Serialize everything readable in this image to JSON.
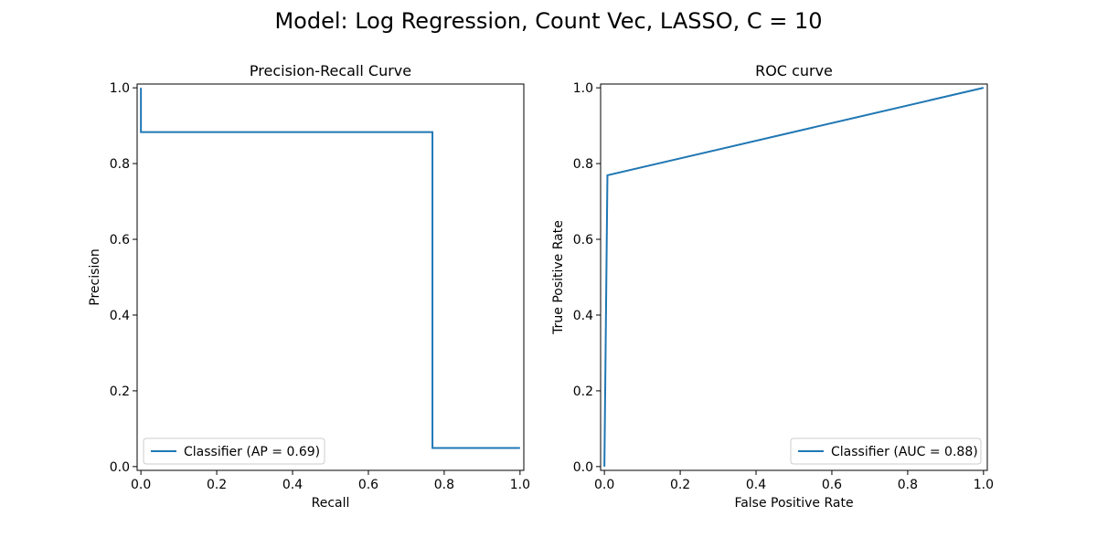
{
  "figure": {
    "suptitle": "Model: Log Regression, Count Vec, LASSO, C = 10"
  },
  "chart_data": [
    {
      "type": "line",
      "drawstyle": "steps-post",
      "title": "Precision-Recall Curve",
      "xlabel": "Recall",
      "ylabel": "Precision",
      "xlim": [
        -0.01,
        1.01
      ],
      "ylim": [
        -0.01,
        1.01
      ],
      "xticks": [
        0.0,
        0.2,
        0.4,
        0.6,
        0.8,
        1.0
      ],
      "yticks": [
        0.0,
        0.2,
        0.4,
        0.6,
        0.8,
        1.0
      ],
      "xtick_labels": [
        "0.0",
        "0.2",
        "0.4",
        "0.6",
        "0.8",
        "1.0"
      ],
      "ytick_labels": [
        "0.0",
        "0.2",
        "0.4",
        "0.6",
        "0.8",
        "1.0"
      ],
      "grid": false,
      "legend_position": "lower-left",
      "series": [
        {
          "name": "Classifier (AP = 0.69)",
          "color": "#1f77b4",
          "x": [
            1.0,
            0.769,
            0.769,
            0.0,
            0.0
          ],
          "y": [
            0.049,
            0.049,
            0.883,
            0.883,
            1.0
          ]
        }
      ]
    },
    {
      "type": "line",
      "title": "ROC curve",
      "xlabel": "False Positive Rate",
      "ylabel": "True Positive Rate",
      "xlim": [
        -0.01,
        1.01
      ],
      "ylim": [
        -0.01,
        1.01
      ],
      "xticks": [
        0.0,
        0.2,
        0.4,
        0.6,
        0.8,
        1.0
      ],
      "yticks": [
        0.0,
        0.2,
        0.4,
        0.6,
        0.8,
        1.0
      ],
      "xtick_labels": [
        "0.0",
        "0.2",
        "0.4",
        "0.6",
        "0.8",
        "1.0"
      ],
      "ytick_labels": [
        "0.0",
        "0.2",
        "0.4",
        "0.6",
        "0.8",
        "1.0"
      ],
      "grid": false,
      "legend_position": "lower-right",
      "series": [
        {
          "name": "Classifier (AUC = 0.88)",
          "color": "#1f77b4",
          "x": [
            0.0,
            0.008,
            1.0
          ],
          "y": [
            0.0,
            0.769,
            1.0
          ]
        }
      ]
    }
  ]
}
